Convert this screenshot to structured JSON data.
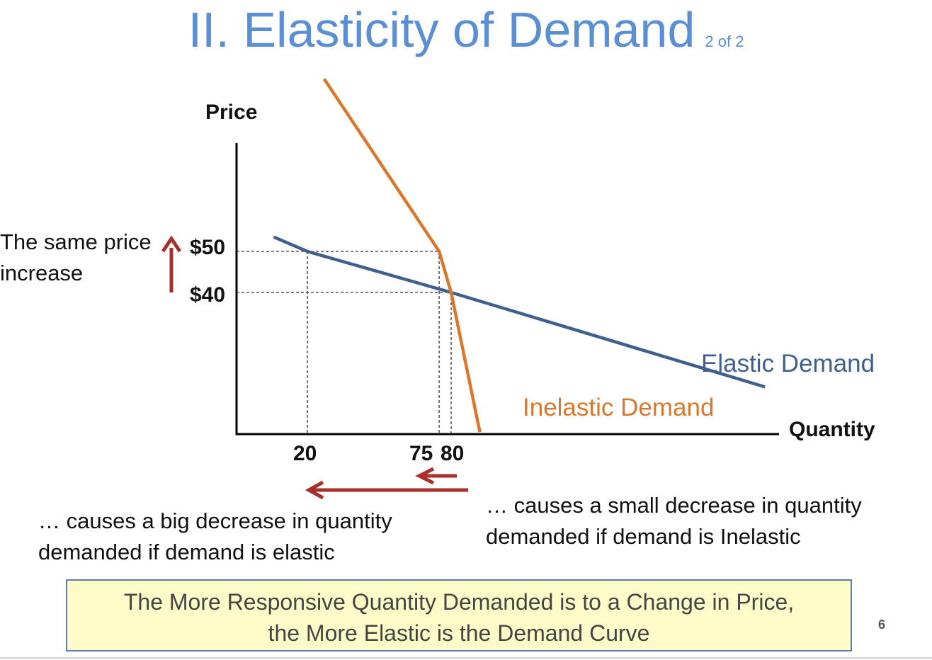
{
  "slide": {
    "title": "II. Elasticity of Demand",
    "title_sub": "2 of 2",
    "page_number": "6",
    "left_note_line1": "The same price",
    "left_note_line2": "increase",
    "bottom_left_line1": "… causes a big decrease in quantity",
    "bottom_left_line2": "demanded if demand is elastic",
    "bottom_right_line1": "… causes a small decrease in quantity",
    "bottom_right_line2": "demanded if demand is Inelastic",
    "summary_line1": "The More Responsive Quantity Demanded is to a Change in Price,",
    "summary_line2": "the More Elastic is the Demand Curve",
    "colors": {
      "title": "#5a8fd6",
      "elastic": "#3f5f8f",
      "inelastic": "#d9782d",
      "arrow": "#a8302a",
      "box_fill": "#fdfcc9",
      "box_border": "#5f79b5"
    }
  },
  "chart_data": {
    "type": "line",
    "xlabel": "Quantity",
    "ylabel": "Price",
    "x_ticks": [
      {
        "value": 20,
        "label": "20"
      },
      {
        "value": 75,
        "label": "75"
      },
      {
        "value": 80,
        "label": "80"
      }
    ],
    "y_ticks": [
      {
        "value": 40,
        "label": "$40"
      },
      {
        "value": 50,
        "label": "$50"
      }
    ],
    "series": [
      {
        "name": "Elastic Demand",
        "color": "#3f5f8f",
        "points": [
          [
            6,
            53.5
          ],
          [
            20,
            50
          ],
          [
            80,
            40
          ],
          [
            211,
            17
          ]
        ]
      },
      {
        "name": "Inelastic Demand",
        "color": "#d9782d",
        "points": [
          [
            27,
            92
          ],
          [
            75,
            50
          ],
          [
            80,
            40
          ],
          [
            92,
            6
          ]
        ]
      }
    ],
    "reference_lines": [
      {
        "type": "h",
        "value": 50,
        "x_to": 75
      },
      {
        "type": "h",
        "value": 40,
        "x_to": 80
      },
      {
        "type": "v",
        "value": 20,
        "y_to": 50
      },
      {
        "type": "v",
        "value": 75,
        "y_to": 50
      },
      {
        "type": "v",
        "value": 80,
        "y_to": 40
      }
    ],
    "grid": false,
    "legend": "labels placed at line ends"
  }
}
